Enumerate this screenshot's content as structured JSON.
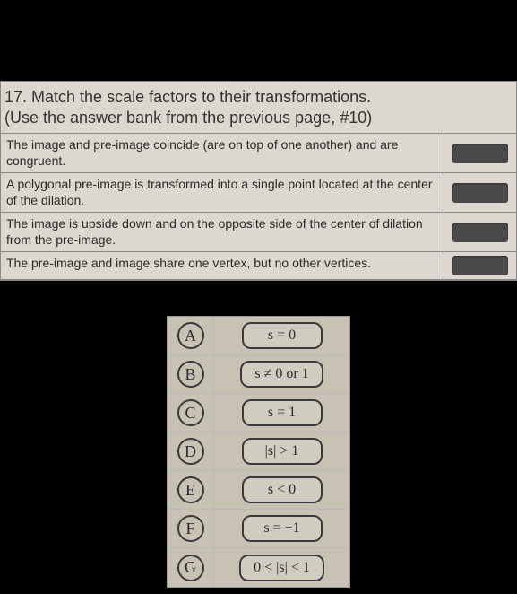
{
  "question": {
    "number": "17.",
    "prompt_line1": "17. Match the scale factors to their transformations.",
    "prompt_line2": "(Use the answer bank from the previous page, #10)",
    "statements": [
      "The image and pre-image coincide (are on top of one another) and are congruent.",
      "A polygonal pre-image is transformed into a single point located at the center of the dilation.",
      "The image is upside down and on the opposite side of the center of dilation from the pre-image.",
      "The pre-image and image share one vertex, but no other vertices."
    ]
  },
  "answer_bank": [
    {
      "letter": "A",
      "expr": "s = 0"
    },
    {
      "letter": "B",
      "expr": "s ≠ 0 or 1"
    },
    {
      "letter": "C",
      "expr": "s = 1"
    },
    {
      "letter": "D",
      "expr": "|s| > 1"
    },
    {
      "letter": "E",
      "expr": "s < 0"
    },
    {
      "letter": "F",
      "expr": "s = −1"
    },
    {
      "letter": "G",
      "expr": "0 < |s| < 1"
    }
  ],
  "colors": {
    "page_bg": "#000000",
    "panel_bg": "#d8d4cc",
    "panel_border": "#888888",
    "text": "#2a2a2a",
    "answer_box": "#4a4a4a",
    "bank_bg": "#c8c2b4",
    "bank_border": "#999999",
    "letter_border": "#3a3a3a",
    "expr_bg": "#d0ccc0"
  }
}
